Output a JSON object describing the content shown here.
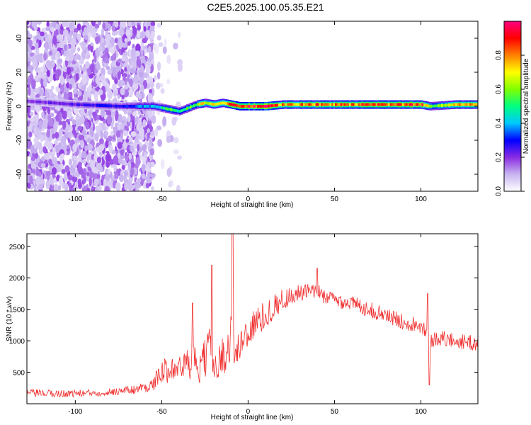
{
  "figure": {
    "title": "C2E5.2025.100.05.35.E21"
  },
  "chart_data": [
    {
      "type": "heatmap",
      "xlabel": "Height of straight line (km)",
      "ylabel": "Frequency (Hz)",
      "xlim": [
        -128,
        133
      ],
      "ylim": [
        -50,
        50
      ],
      "xticks": [
        -100,
        -50,
        0,
        50,
        100
      ],
      "yticks": [
        -40,
        -20,
        0,
        20,
        40
      ],
      "colorbar": {
        "label": "Normalized spectral amplitude",
        "range": [
          0,
          1
        ],
        "ticks": [
          0.0,
          0.2,
          0.4,
          0.6,
          0.8
        ],
        "colors": [
          "#ffffff",
          "#c8b4f0",
          "#8a2be2",
          "#0000ff",
          "#00c8ff",
          "#00ff80",
          "#80ff00",
          "#ffff00",
          "#ff8000",
          "#ff0000",
          "#ff0080"
        ]
      },
      "noise_region": {
        "x": [
          -128,
          -55
        ],
        "freq": [
          -50,
          50
        ]
      },
      "center_line": {
        "x": [
          -128,
          -100,
          -75,
          -55,
          -50,
          -45,
          -40,
          -35,
          -30,
          -25,
          -20,
          -15,
          -10,
          -5,
          0,
          10,
          20,
          40,
          60,
          80,
          100,
          105,
          120,
          133
        ],
        "freq": [
          3,
          1,
          0,
          0,
          -1,
          -2,
          -3,
          -1,
          1,
          2,
          1,
          2,
          1,
          0,
          0,
          0,
          1,
          1,
          1,
          1,
          1,
          0,
          1,
          1
        ],
        "amplitude": [
          0.2,
          0.25,
          0.3,
          0.45,
          0.5,
          0.55,
          0.5,
          0.55,
          0.65,
          0.75,
          0.7,
          0.8,
          0.85,
          0.9,
          0.95,
          0.95,
          0.8,
          0.85,
          0.85,
          0.85,
          0.9,
          0.6,
          0.8,
          0.75
        ]
      }
    },
    {
      "type": "line",
      "xlabel": "Height of straight line (km)",
      "ylabel": "SNR (10 * v/v)",
      "xlim": [
        -128,
        133
      ],
      "ylim": [
        0,
        2700
      ],
      "xticks": [
        -100,
        -50,
        0,
        50,
        100
      ],
      "yticks": [
        500,
        1000,
        1500,
        2000,
        2500
      ],
      "color": "#f03030",
      "series": [
        {
          "x": [
            -128,
            -110,
            -90,
            -75,
            -65,
            -55,
            -52,
            -48,
            -45,
            -40,
            -36,
            -33,
            -32,
            -30,
            -26,
            -22,
            -21,
            -18,
            -15,
            -12,
            -10,
            -9,
            -7,
            -4,
            0,
            5,
            10,
            15,
            20,
            25,
            30,
            35,
            40,
            45,
            50,
            60,
            70,
            80,
            90,
            100,
            104,
            105,
            106,
            110,
            120,
            133
          ],
          "base": [
            170,
            160,
            170,
            200,
            230,
            300,
            450,
            500,
            600,
            550,
            650,
            600,
            900,
            500,
            650,
            900,
            500,
            700,
            750,
            800,
            1100,
            1150,
            700,
            1000,
            1150,
            1300,
            1400,
            1550,
            1650,
            1720,
            1750,
            1780,
            1780,
            1700,
            1650,
            1600,
            1500,
            1400,
            1300,
            1250,
            1150,
            700,
            1000,
            1050,
            1000,
            950
          ],
          "spread": [
            120,
            120,
            120,
            120,
            150,
            200,
            300,
            450,
            400,
            400,
            450,
            500,
            500,
            550,
            600,
            700,
            600,
            600,
            600,
            650,
            700,
            700,
            600,
            600,
            550,
            500,
            450,
            400,
            350,
            300,
            300,
            250,
            250,
            250,
            250,
            250,
            250,
            250,
            250,
            250,
            250,
            300,
            250,
            250,
            250,
            250
          ],
          "spikes": [
            {
              "x": -32,
              "y": 1600
            },
            {
              "x": -21,
              "y": 2200
            },
            {
              "x": -9,
              "y": 2700
            },
            {
              "x": 40,
              "y": 2150
            },
            {
              "x": 104,
              "y": 1750
            },
            {
              "x": 105,
              "y": 300
            }
          ]
        }
      ]
    }
  ]
}
